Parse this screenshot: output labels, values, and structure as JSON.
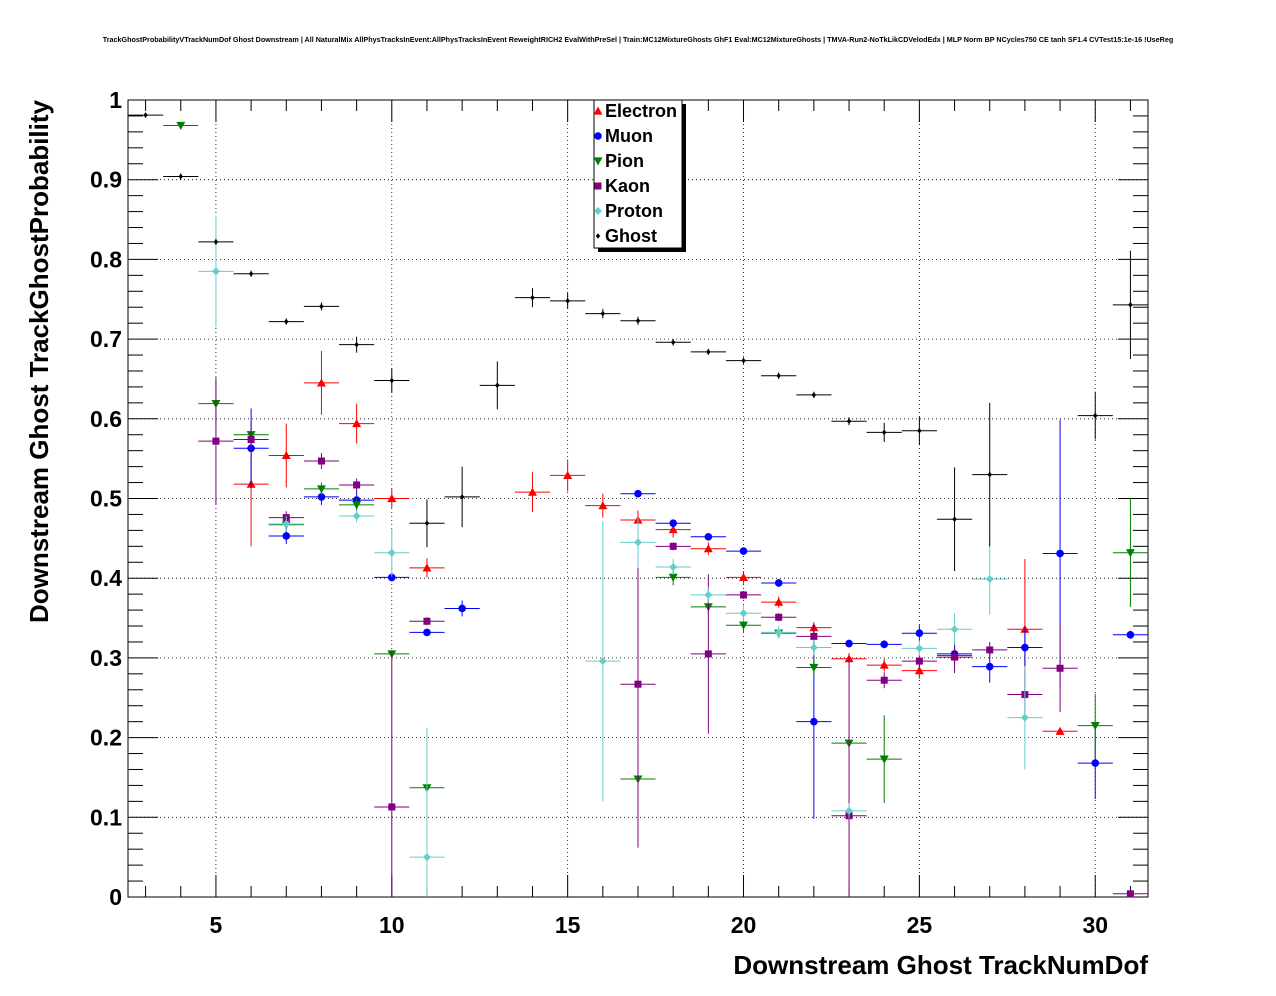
{
  "chart_data": {
    "type": "scatter",
    "title": "TrackGhostProbabilityVTrackNumDof Ghost Downstream | All NaturalMix AllPhysTracksInEvent:AllPhysTracksInEvent ReweightRICH2 EvalWithPreSel | Train:MC12MixtureGhosts GhF1 Eval:MC12MixtureGhosts | TMVA-Run2-NoTkLikCDVelodEdx | MLP Norm BP NCycles750 CE tanh SF1.4 CVTest15:1e-16 !UseReg",
    "xlabel": "Downstream Ghost TrackNumDof",
    "ylabel": "Downstream Ghost TrackGhostProbability",
    "xlim": [
      2.5,
      31.5
    ],
    "ylim": [
      0,
      1
    ],
    "x_ticks": [
      "5",
      "10",
      "15",
      "20",
      "25",
      "30"
    ],
    "y_ticks": [
      "0",
      "0.1",
      "0.2",
      "0.3",
      "0.4",
      "0.5",
      "0.6",
      "0.7",
      "0.8",
      "0.9",
      "1"
    ],
    "grid": true,
    "legend_position": "top-center",
    "series": [
      {
        "name": "Electron",
        "color": "#ff0000",
        "marker": "triangle-up",
        "points": [
          {
            "x": 6,
            "y": 0.518,
            "err": 0.078
          },
          {
            "x": 7,
            "y": 0.554,
            "err": 0.04
          },
          {
            "x": 8,
            "y": 0.645,
            "err": 0.04
          },
          {
            "x": 9,
            "y": 0.594,
            "err": 0.025
          },
          {
            "x": 10,
            "y": 0.5,
            "err": 0.012
          },
          {
            "x": 11,
            "y": 0.413,
            "err": 0.012
          },
          {
            "x": 14,
            "y": 0.508,
            "err": 0.025
          },
          {
            "x": 15,
            "y": 0.529,
            "err": 0.02
          },
          {
            "x": 16,
            "y": 0.491,
            "err": 0.015
          },
          {
            "x": 17,
            "y": 0.473,
            "err": 0.012
          },
          {
            "x": 18,
            "y": 0.461,
            "err": 0.01
          },
          {
            "x": 19,
            "y": 0.437,
            "err": 0.008
          },
          {
            "x": 20,
            "y": 0.401,
            "err": 0.008
          },
          {
            "x": 21,
            "y": 0.37,
            "err": 0.007
          },
          {
            "x": 22,
            "y": 0.338,
            "err": 0.007
          },
          {
            "x": 23,
            "y": 0.299,
            "err": 0.007
          },
          {
            "x": 24,
            "y": 0.291,
            "err": 0.008
          },
          {
            "x": 25,
            "y": 0.284,
            "err": 0.01
          },
          {
            "x": 26,
            "y": 0.303,
            "err": 0.015
          },
          {
            "x": 28,
            "y": 0.336,
            "err": 0.088
          },
          {
            "x": 29,
            "y": 0.208,
            "err": 0.004
          }
        ]
      },
      {
        "name": "Muon",
        "color": "#0000ff",
        "marker": "circle",
        "points": [
          {
            "x": 6,
            "y": 0.563,
            "err": 0.05
          },
          {
            "x": 7,
            "y": 0.453,
            "err": 0.01
          },
          {
            "x": 8,
            "y": 0.502,
            "err": 0.01
          },
          {
            "x": 9,
            "y": 0.498,
            "err": 0.012
          },
          {
            "x": 10,
            "y": 0.401,
            "err": 0.005
          },
          {
            "x": 11,
            "y": 0.332,
            "err": 0.004
          },
          {
            "x": 12,
            "y": 0.362,
            "err": 0.01
          },
          {
            "x": 17,
            "y": 0.506,
            "err": 0.004
          },
          {
            "x": 18,
            "y": 0.469,
            "err": 0.004
          },
          {
            "x": 19,
            "y": 0.452,
            "err": 0.004
          },
          {
            "x": 20,
            "y": 0.434,
            "err": 0.004
          },
          {
            "x": 21,
            "y": 0.394,
            "err": 0.005
          },
          {
            "x": 22,
            "y": 0.22,
            "err": 0.122
          },
          {
            "x": 23,
            "y": 0.318,
            "err": 0.005
          },
          {
            "x": 24,
            "y": 0.317,
            "err": 0.005
          },
          {
            "x": 25,
            "y": 0.331,
            "err": 0.01
          },
          {
            "x": 26,
            "y": 0.305,
            "err": 0.012
          },
          {
            "x": 27,
            "y": 0.289,
            "err": 0.02
          },
          {
            "x": 28,
            "y": 0.313,
            "err": 0.025
          },
          {
            "x": 29,
            "y": 0.431,
            "err": 0.168
          },
          {
            "x": 30,
            "y": 0.168,
            "err": 0.045
          },
          {
            "x": 31,
            "y": 0.329,
            "err": 0.005
          }
        ]
      },
      {
        "name": "Pion",
        "color": "#008000",
        "marker": "triangle-down",
        "points": [
          {
            "x": 4,
            "y": 0.968,
            "err": 0.003
          },
          {
            "x": 5,
            "y": 0.619,
            "err": 0.03
          },
          {
            "x": 6,
            "y": 0.58,
            "err": 0.01
          },
          {
            "x": 7,
            "y": 0.467,
            "err": 0.008
          },
          {
            "x": 8,
            "y": 0.512,
            "err": 0.008
          },
          {
            "x": 9,
            "y": 0.492,
            "err": 0.008
          },
          {
            "x": 10,
            "y": 0.305,
            "err": 0.005
          },
          {
            "x": 11,
            "y": 0.137,
            "err": 0.005
          },
          {
            "x": 17,
            "y": 0.148,
            "err": 0.005
          },
          {
            "x": 18,
            "y": 0.401,
            "err": 0.01
          },
          {
            "x": 19,
            "y": 0.364,
            "err": 0.008
          },
          {
            "x": 20,
            "y": 0.341,
            "err": 0.01
          },
          {
            "x": 21,
            "y": 0.331,
            "err": 0.005
          },
          {
            "x": 22,
            "y": 0.288,
            "err": 0.01
          },
          {
            "x": 23,
            "y": 0.193,
            "err": 0.005
          },
          {
            "x": 24,
            "y": 0.173,
            "err": 0.055
          },
          {
            "x": 30,
            "y": 0.215,
            "err": 0.04
          },
          {
            "x": 31,
            "y": 0.432,
            "err": 0.068
          }
        ]
      },
      {
        "name": "Kaon",
        "color": "#800080",
        "marker": "square",
        "points": [
          {
            "x": 5,
            "y": 0.572,
            "err": 0.08
          },
          {
            "x": 6,
            "y": 0.574,
            "err": 0.015
          },
          {
            "x": 7,
            "y": 0.476,
            "err": 0.008
          },
          {
            "x": 8,
            "y": 0.547,
            "err": 0.01
          },
          {
            "x": 9,
            "y": 0.517,
            "err": 0.008
          },
          {
            "x": 10,
            "y": 0.113,
            "err": 0.195
          },
          {
            "x": 11,
            "y": 0.346,
            "err": 0.005
          },
          {
            "x": 17,
            "y": 0.267,
            "err": 0.205
          },
          {
            "x": 18,
            "y": 0.44,
            "err": 0.005
          },
          {
            "x": 19,
            "y": 0.305,
            "err": 0.1
          },
          {
            "x": 20,
            "y": 0.379,
            "err": 0.005
          },
          {
            "x": 21,
            "y": 0.351,
            "err": 0.005
          },
          {
            "x": 22,
            "y": 0.327,
            "err": 0.01
          },
          {
            "x": 23,
            "y": 0.102,
            "err": 0.198
          },
          {
            "x": 24,
            "y": 0.272,
            "err": 0.01
          },
          {
            "x": 25,
            "y": 0.296,
            "err": 0.008
          },
          {
            "x": 26,
            "y": 0.301,
            "err": 0.02
          },
          {
            "x": 27,
            "y": 0.31,
            "err": 0.01
          },
          {
            "x": 28,
            "y": 0.254,
            "err": 0.03
          },
          {
            "x": 29,
            "y": 0.287,
            "err": 0.055
          },
          {
            "x": 31,
            "y": 0.004,
            "err": 0.004
          }
        ]
      },
      {
        "name": "Proton",
        "color": "#66cccc",
        "marker": "diamond",
        "points": [
          {
            "x": 5,
            "y": 0.785,
            "err": 0.07
          },
          {
            "x": 7,
            "y": 0.468,
            "err": 0.01
          },
          {
            "x": 9,
            "y": 0.478,
            "err": 0.008
          },
          {
            "x": 10,
            "y": 0.432,
            "err": 0.03
          },
          {
            "x": 11,
            "y": 0.05,
            "err": 0.162
          },
          {
            "x": 16,
            "y": 0.296,
            "err": 0.176
          },
          {
            "x": 17,
            "y": 0.445,
            "err": 0.032
          },
          {
            "x": 18,
            "y": 0.414,
            "err": 0.01
          },
          {
            "x": 19,
            "y": 0.379,
            "err": 0.01
          },
          {
            "x": 20,
            "y": 0.356,
            "err": 0.01
          },
          {
            "x": 21,
            "y": 0.332,
            "err": 0.008
          },
          {
            "x": 22,
            "y": 0.313,
            "err": 0.01
          },
          {
            "x": 23,
            "y": 0.108,
            "err": 0.01
          },
          {
            "x": 25,
            "y": 0.312,
            "err": 0.01
          },
          {
            "x": 26,
            "y": 0.336,
            "err": 0.02
          },
          {
            "x": 27,
            "y": 0.399,
            "err": 0.045
          },
          {
            "x": 28,
            "y": 0.225,
            "err": 0.065
          }
        ]
      },
      {
        "name": "Ghost",
        "color": "#000000",
        "marker": "diamond-small",
        "points": [
          {
            "x": 3,
            "y": 0.981,
            "err": 0.003
          },
          {
            "x": 4,
            "y": 0.904,
            "err": 0.004
          },
          {
            "x": 5,
            "y": 0.822,
            "err": 0.004
          },
          {
            "x": 6,
            "y": 0.782,
            "err": 0.004
          },
          {
            "x": 7,
            "y": 0.722,
            "err": 0.004
          },
          {
            "x": 8,
            "y": 0.741,
            "err": 0.005
          },
          {
            "x": 9,
            "y": 0.693,
            "err": 0.01
          },
          {
            "x": 10,
            "y": 0.648,
            "err": 0.015
          },
          {
            "x": 11,
            "y": 0.469,
            "err": 0.03
          },
          {
            "x": 12,
            "y": 0.502,
            "err": 0.038
          },
          {
            "x": 13,
            "y": 0.642,
            "err": 0.03
          },
          {
            "x": 14,
            "y": 0.752,
            "err": 0.012
          },
          {
            "x": 15,
            "y": 0.748,
            "err": 0.01
          },
          {
            "x": 16,
            "y": 0.732,
            "err": 0.006
          },
          {
            "x": 17,
            "y": 0.723,
            "err": 0.005
          },
          {
            "x": 18,
            "y": 0.696,
            "err": 0.004
          },
          {
            "x": 19,
            "y": 0.684,
            "err": 0.004
          },
          {
            "x": 20,
            "y": 0.673,
            "err": 0.004
          },
          {
            "x": 21,
            "y": 0.654,
            "err": 0.004
          },
          {
            "x": 22,
            "y": 0.63,
            "err": 0.004
          },
          {
            "x": 23,
            "y": 0.597,
            "err": 0.005
          },
          {
            "x": 24,
            "y": 0.583,
            "err": 0.012
          },
          {
            "x": 25,
            "y": 0.585,
            "err": 0.018
          },
          {
            "x": 26,
            "y": 0.474,
            "err": 0.065
          },
          {
            "x": 27,
            "y": 0.53,
            "err": 0.09
          },
          {
            "x": 30,
            "y": 0.604,
            "err": 0.03
          },
          {
            "x": 31,
            "y": 0.743,
            "err": 0.068
          }
        ]
      }
    ]
  }
}
